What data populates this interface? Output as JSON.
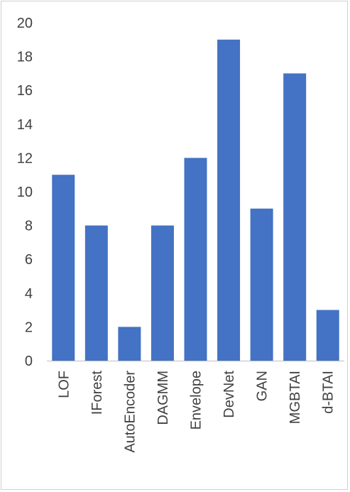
{
  "chart_data": {
    "type": "bar",
    "categories": [
      "LOF",
      "IForest",
      "AutoEncoder",
      "DAGMM",
      "Envelope",
      "DevNet",
      "GAN",
      "MGBTAI",
      "d-BTAI"
    ],
    "values": [
      11,
      8,
      2,
      8,
      12,
      19,
      9,
      17,
      3
    ],
    "title": "",
    "xlabel": "",
    "ylabel": "",
    "ylim": [
      0,
      20
    ],
    "yticks": [
      0,
      2,
      4,
      6,
      8,
      10,
      12,
      14,
      16,
      18,
      20
    ],
    "grid": false,
    "legend": "none",
    "bar_color": "#4472C4",
    "axis_color": "#bfbfbf",
    "text_color": "#404040"
  }
}
